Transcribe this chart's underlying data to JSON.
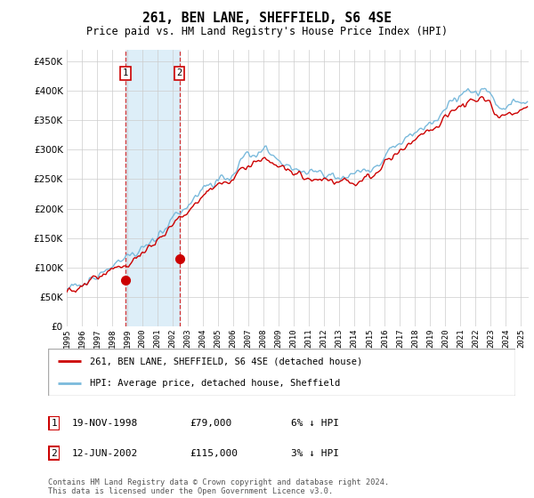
{
  "title": "261, BEN LANE, SHEFFIELD, S6 4SE",
  "subtitle": "Price paid vs. HM Land Registry's House Price Index (HPI)",
  "ylim": [
    0,
    470000
  ],
  "yticks": [
    0,
    50000,
    100000,
    150000,
    200000,
    250000,
    300000,
    350000,
    400000,
    450000
  ],
  "sale1_date": 1998.88,
  "sale1_price": 79000,
  "sale2_date": 2002.44,
  "sale2_price": 115000,
  "hpi_color": "#7abadc",
  "price_color": "#CC0000",
  "highlight_color": "#ddeef8",
  "legend_entries": [
    "261, BEN LANE, SHEFFIELD, S6 4SE (detached house)",
    "HPI: Average price, detached house, Sheffield"
  ],
  "table_rows": [
    [
      "1",
      "19-NOV-1998",
      "£79,000",
      "6% ↓ HPI"
    ],
    [
      "2",
      "12-JUN-2002",
      "£115,000",
      "3% ↓ HPI"
    ]
  ],
  "footnote": "Contains HM Land Registry data © Crown copyright and database right 2024.\nThis data is licensed under the Open Government Licence v3.0.",
  "xmin": 1995.0,
  "xmax": 2025.5
}
